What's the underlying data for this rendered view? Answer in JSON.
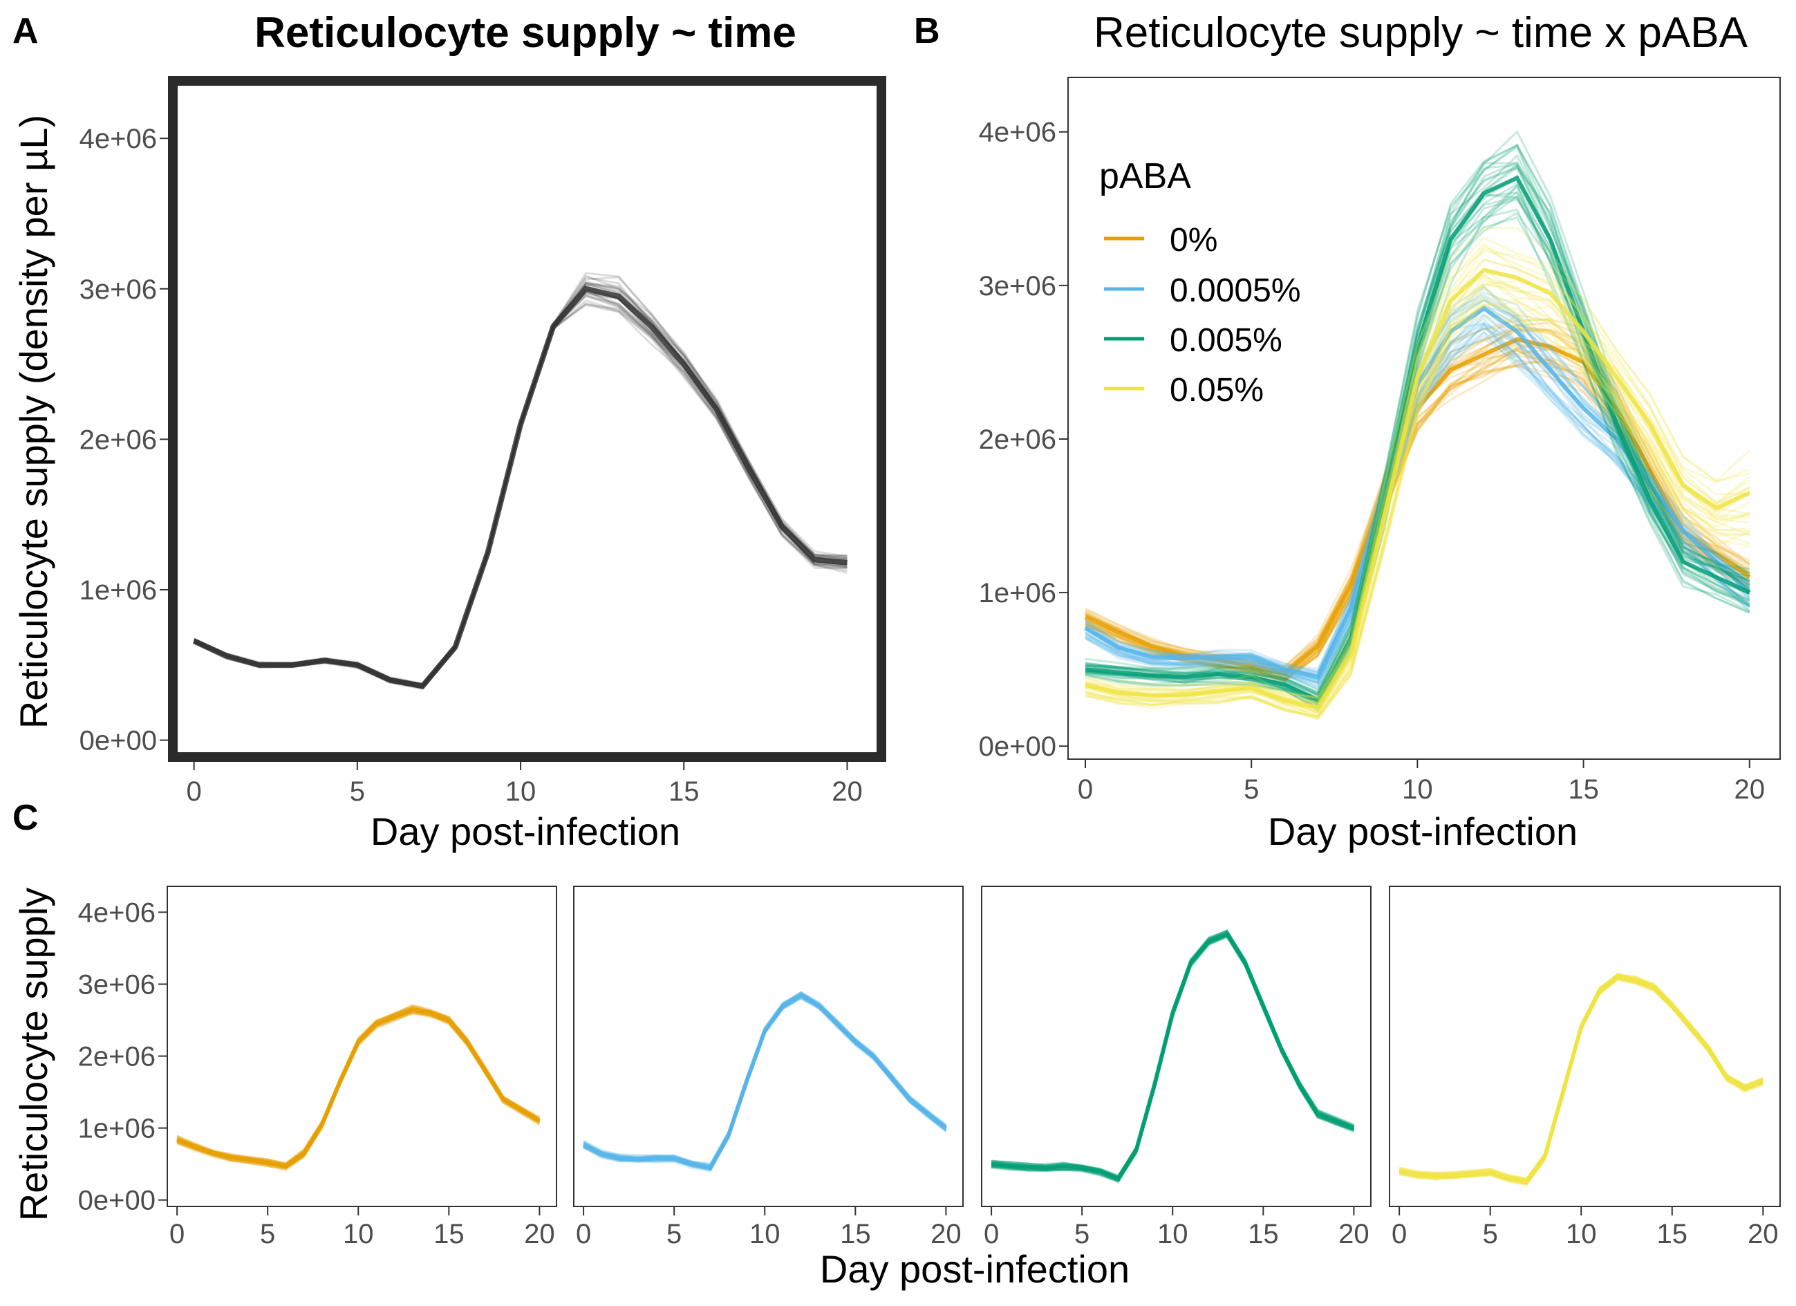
{
  "panels": {
    "A": {
      "letter": "A",
      "title": "Reticulocyte supply ~ time",
      "ylabel": "Reticulocyte supply (density per µL)",
      "xlabel": "Day post-infection"
    },
    "B": {
      "letter": "B",
      "title": "Reticulocyte supply ~ time x pABA",
      "xlabel": "Day post-infection"
    },
    "C": {
      "letter": "C",
      "ylabel": "Reticulocyte supply",
      "xlabel": "Day post-infection"
    }
  },
  "legend": {
    "title": "pABA",
    "items": [
      "0%",
      "0.0005%",
      "0.005%",
      "0.05%"
    ]
  },
  "colors": {
    "0%": "#E69F00",
    "0.0005%": "#56B4E9",
    "0.005%": "#009E73",
    "0.05%": "#F0E442",
    "overall": "#333333"
  },
  "axes": {
    "x_ticks": [
      "0",
      "5",
      "10",
      "15",
      "20"
    ],
    "y_ticks": [
      "0e+00",
      "1e+06",
      "2e+06",
      "3e+06",
      "4e+06"
    ],
    "xlim": [
      -0.5,
      20.9
    ],
    "ylim_top": [
      -80000,
      4350000
    ],
    "ylim_bottom": [
      -80000,
      4350000
    ]
  },
  "chart_data": [
    {
      "type": "line",
      "title": "Reticulocyte supply ~ time",
      "xlabel": "Day post-infection",
      "ylabel": "Reticulocyte supply (density per µL)",
      "x": [
        0,
        1,
        2,
        3,
        4,
        5,
        6,
        7,
        8,
        9,
        10,
        11,
        12,
        13,
        14,
        15,
        16,
        17,
        18,
        19,
        20
      ],
      "series": [
        {
          "values": [
            660000,
            560000,
            500000,
            500000,
            530000,
            500000,
            400000,
            360000,
            620000,
            1250000,
            2100000,
            2750000,
            3000000,
            2950000,
            2750000,
            2500000,
            2200000,
            1800000,
            1420000,
            1200000,
            1180000
          ],
          "spread": [
            0,
            0,
            0,
            0,
            0,
            0,
            0,
            0,
            0,
            0,
            0,
            0,
            100000,
            120000,
            100000,
            80000,
            60000,
            50000,
            40000,
            40000,
            50000
          ]
        }
      ],
      "xlim": [
        -0.5,
        20.9
      ],
      "ylim": [
        -80000,
        4350000
      ]
    },
    {
      "type": "line",
      "title": "Reticulocyte supply ~ time x pABA",
      "xlabel": "Day post-infection",
      "legend_title": "pABA",
      "legend_position": "top-left",
      "x": [
        0,
        1,
        2,
        3,
        4,
        5,
        6,
        7,
        8,
        9,
        10,
        11,
        12,
        13,
        14,
        15,
        16,
        17,
        18,
        19,
        20
      ],
      "series": [
        {
          "name": "0%",
          "values": [
            840000,
            740000,
            650000,
            590000,
            560000,
            520000,
            470000,
            650000,
            1050000,
            1650000,
            2200000,
            2450000,
            2550000,
            2650000,
            2600000,
            2500000,
            2200000,
            1800000,
            1400000,
            1250000,
            1100000
          ],
          "spread": [
            60000,
            50000,
            40000,
            40000,
            40000,
            40000,
            40000,
            60000,
            100000,
            150000,
            180000,
            200000,
            200000,
            200000,
            200000,
            200000,
            180000,
            150000,
            130000,
            120000,
            120000
          ]
        },
        {
          "name": "0.0005%",
          "values": [
            770000,
            640000,
            580000,
            570000,
            580000,
            580000,
            500000,
            450000,
            900000,
            1650000,
            2350000,
            2700000,
            2850000,
            2700000,
            2450000,
            2200000,
            2000000,
            1700000,
            1400000,
            1200000,
            1000000
          ],
          "spread": [
            60000,
            50000,
            40000,
            40000,
            40000,
            40000,
            40000,
            60000,
            100000,
            150000,
            200000,
            220000,
            220000,
            220000,
            220000,
            200000,
            180000,
            150000,
            130000,
            120000,
            120000
          ]
        },
        {
          "name": "0.005%",
          "values": [
            500000,
            480000,
            460000,
            450000,
            470000,
            450000,
            400000,
            300000,
            700000,
            1600000,
            2600000,
            3300000,
            3600000,
            3700000,
            3300000,
            2700000,
            2100000,
            1600000,
            1200000,
            1100000,
            1000000
          ],
          "spread": [
            50000,
            50000,
            50000,
            50000,
            50000,
            50000,
            50000,
            60000,
            100000,
            200000,
            250000,
            280000,
            300000,
            300000,
            280000,
            250000,
            220000,
            180000,
            150000,
            150000,
            150000
          ]
        },
        {
          "name": "0.05%",
          "values": [
            400000,
            350000,
            330000,
            340000,
            360000,
            380000,
            300000,
            250000,
            600000,
            1500000,
            2400000,
            2900000,
            3100000,
            3050000,
            2950000,
            2700000,
            2400000,
            2100000,
            1700000,
            1550000,
            1650000
          ],
          "spread": [
            60000,
            60000,
            60000,
            60000,
            60000,
            60000,
            60000,
            70000,
            150000,
            250000,
            300000,
            300000,
            300000,
            300000,
            300000,
            280000,
            260000,
            250000,
            230000,
            250000,
            350000
          ]
        }
      ],
      "xlim": [
        -0.5,
        20.9
      ],
      "ylim": [
        -80000,
        4350000
      ]
    },
    {
      "type": "line",
      "facet": "0%",
      "x": [
        0,
        1,
        2,
        3,
        4,
        5,
        6,
        7,
        8,
        9,
        10,
        11,
        12,
        13,
        14,
        15,
        16,
        17,
        18,
        19,
        20
      ],
      "series": [
        {
          "name": "0%",
          "values": [
            840000,
            740000,
            650000,
            590000,
            560000,
            520000,
            470000,
            650000,
            1050000,
            1650000,
            2200000,
            2450000,
            2550000,
            2650000,
            2600000,
            2500000,
            2200000,
            1800000,
            1400000,
            1250000,
            1100000
          ]
        }
      ],
      "xlim": [
        -0.5,
        20.9
      ],
      "ylim": [
        -80000,
        4350000
      ]
    },
    {
      "type": "line",
      "facet": "0.0005%",
      "x": [
        0,
        1,
        2,
        3,
        4,
        5,
        6,
        7,
        8,
        9,
        10,
        11,
        12,
        13,
        14,
        15,
        16,
        17,
        18,
        19,
        20
      ],
      "series": [
        {
          "name": "0.0005%",
          "values": [
            770000,
            640000,
            580000,
            570000,
            580000,
            580000,
            500000,
            450000,
            900000,
            1650000,
            2350000,
            2700000,
            2850000,
            2700000,
            2450000,
            2200000,
            2000000,
            1700000,
            1400000,
            1200000,
            1000000
          ]
        }
      ],
      "xlim": [
        -0.5,
        20.9
      ],
      "ylim": [
        -80000,
        4350000
      ]
    },
    {
      "type": "line",
      "facet": "0.005%",
      "x": [
        0,
        1,
        2,
        3,
        4,
        5,
        6,
        7,
        8,
        9,
        10,
        11,
        12,
        13,
        14,
        15,
        16,
        17,
        18,
        19,
        20
      ],
      "series": [
        {
          "name": "0.005%",
          "values": [
            500000,
            480000,
            460000,
            450000,
            470000,
            450000,
            400000,
            300000,
            700000,
            1600000,
            2600000,
            3300000,
            3600000,
            3700000,
            3300000,
            2700000,
            2100000,
            1600000,
            1200000,
            1100000,
            1000000
          ]
        }
      ],
      "xlim": [
        -0.5,
        20.9
      ],
      "ylim": [
        -80000,
        4350000
      ]
    },
    {
      "type": "line",
      "facet": "0.05%",
      "x": [
        0,
        1,
        2,
        3,
        4,
        5,
        6,
        7,
        8,
        9,
        10,
        11,
        12,
        13,
        14,
        15,
        16,
        17,
        18,
        19,
        20
      ],
      "series": [
        {
          "name": "0.05%",
          "values": [
            400000,
            350000,
            330000,
            340000,
            360000,
            380000,
            300000,
            250000,
            600000,
            1500000,
            2400000,
            2900000,
            3100000,
            3050000,
            2950000,
            2700000,
            2400000,
            2100000,
            1700000,
            1550000,
            1650000
          ]
        }
      ],
      "xlim": [
        -0.5,
        20.9
      ],
      "ylim": [
        -80000,
        4350000
      ]
    }
  ]
}
